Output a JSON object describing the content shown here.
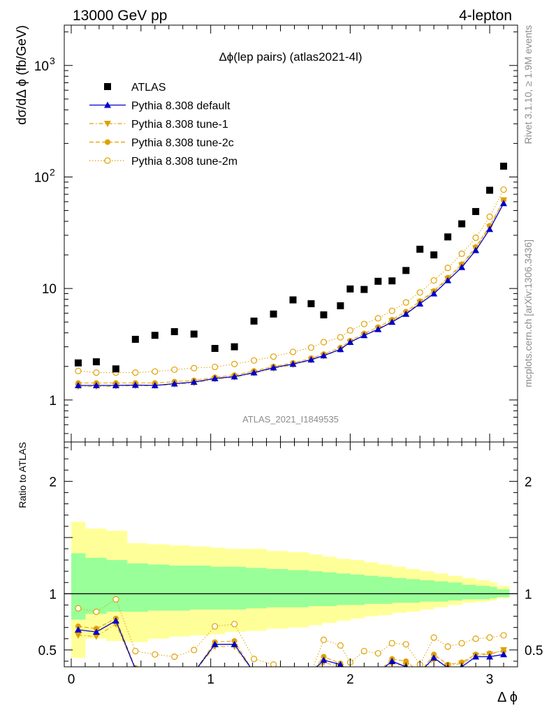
{
  "header": {
    "left": "13000 GeV pp",
    "right": "4-lepton"
  },
  "plot_title": "Δϕ(lep pairs) (atlas2021-4l)",
  "watermark": "ATLAS_2021_I1849535",
  "side_text": {
    "rivet": "Rivet 3.1.10, ≥ 1.9M events",
    "mcplots": "mcplots.cern.ch [arXiv:1306.3436]"
  },
  "chart_data": [
    {
      "type": "scatter",
      "title": "Δϕ(lep pairs) (atlas2021-4l)",
      "ylabel": "dσ/dΔ ϕ (fb/GeV)",
      "xlabel": "",
      "yscale": "log",
      "xlim": [
        -0.05,
        3.2
      ],
      "ylim": [
        0.42,
        2300
      ],
      "ytick_labels": [
        {
          "value": 1,
          "label": "1"
        },
        {
          "value": 10,
          "label": "10"
        },
        {
          "value": 100,
          "label": "10",
          "sup": "2"
        },
        {
          "value": 1000,
          "label": "10",
          "sup": "3"
        }
      ],
      "x": [
        0.05,
        0.18,
        0.32,
        0.46,
        0.6,
        0.74,
        0.88,
        1.03,
        1.17,
        1.31,
        1.45,
        1.59,
        1.72,
        1.81,
        1.93,
        2.0,
        2.1,
        2.2,
        2.3,
        2.4,
        2.5,
        2.6,
        2.7,
        2.8,
        2.9,
        3.0,
        3.1
      ],
      "series": [
        {
          "name": "ATLAS",
          "color": "#000000",
          "marker": "square",
          "values": [
            2.15,
            2.2,
            1.9,
            3.5,
            3.8,
            4.1,
            3.9,
            2.9,
            3.0,
            5.1,
            5.9,
            7.9,
            7.3,
            5.8,
            7.0,
            9.9,
            9.8,
            11.6,
            11.7,
            14.5,
            22.5,
            20.0,
            29.0,
            38.0,
            49.0,
            76.0,
            125.0
          ]
        },
        {
          "name": "Pythia 8.308 default",
          "color": "#0000cc",
          "marker": "triangle-up",
          "line": "solid",
          "values": [
            1.35,
            1.35,
            1.35,
            1.36,
            1.35,
            1.4,
            1.45,
            1.56,
            1.62,
            1.76,
            1.95,
            2.1,
            2.3,
            2.5,
            2.85,
            3.3,
            3.8,
            4.3,
            5.0,
            5.9,
            7.3,
            9.0,
            11.8,
            15.5,
            22.0,
            34.0,
            58.0
          ]
        },
        {
          "name": "Pythia 8.308 tune-1",
          "color": "#e0a000",
          "marker": "triangle-down",
          "line": "dashdot",
          "values": [
            1.32,
            1.32,
            1.33,
            1.34,
            1.34,
            1.38,
            1.42,
            1.54,
            1.6,
            1.74,
            1.92,
            2.07,
            2.28,
            2.48,
            2.83,
            3.3,
            3.8,
            4.35,
            5.1,
            6.0,
            7.5,
            9.3,
            12.2,
            16.2,
            23.0,
            35.5,
            62.0
          ]
        },
        {
          "name": "Pythia 8.308 tune-2c",
          "color": "#e0a000",
          "marker": "circle",
          "line": "dashed",
          "values": [
            1.42,
            1.42,
            1.42,
            1.42,
            1.42,
            1.46,
            1.5,
            1.6,
            1.67,
            1.82,
            2.0,
            2.15,
            2.37,
            2.58,
            2.95,
            3.4,
            3.95,
            4.5,
            5.25,
            6.2,
            7.7,
            9.5,
            12.5,
            16.5,
            23.5,
            36.5,
            62.0
          ]
        },
        {
          "name": "Pythia 8.308 tune-2m",
          "color": "#e0a000",
          "marker": "circle-open",
          "line": "dotted",
          "values": [
            1.82,
            1.76,
            1.76,
            1.76,
            1.8,
            1.87,
            1.93,
            1.98,
            2.1,
            2.26,
            2.45,
            2.7,
            2.95,
            3.3,
            3.65,
            4.2,
            4.8,
            5.4,
            6.3,
            7.5,
            9.2,
            11.8,
            15.3,
            20.5,
            28.5,
            44.0,
            77.0
          ]
        }
      ],
      "legend_position": "top-left",
      "grid": false
    },
    {
      "type": "scatter",
      "ylabel": "Ratio to ATLAS",
      "xlabel": "Δ ϕ",
      "xlim": [
        -0.05,
        3.2
      ],
      "ylim": [
        0.35,
        2.35
      ],
      "xtick_labels": [
        "0",
        "1",
        "2",
        "3"
      ],
      "ytick_labels": [
        "0.5",
        "1",
        "2"
      ],
      "reference_line": 1,
      "x": [
        0.05,
        0.18,
        0.32,
        0.46,
        0.6,
        0.74,
        0.88,
        1.03,
        1.17,
        1.31,
        1.45,
        1.59,
        1.72,
        1.81,
        1.93,
        2.0,
        2.1,
        2.2,
        2.3,
        2.4,
        2.5,
        2.6,
        2.7,
        2.8,
        2.9,
        3.0,
        3.1
      ],
      "x_edges": [
        0.0,
        0.1,
        0.25,
        0.4,
        0.55,
        0.7,
        0.85,
        1.0,
        1.1,
        1.25,
        1.4,
        1.55,
        1.7,
        1.8,
        1.9,
        2.0,
        2.1,
        2.2,
        2.3,
        2.4,
        2.5,
        2.6,
        2.7,
        2.8,
        2.9,
        3.0,
        3.05,
        3.14
      ],
      "bands": [
        {
          "name": "total uncertainty",
          "color": "#ffff99",
          "low": [
            0.43,
            0.6,
            0.58,
            0.57,
            0.6,
            0.62,
            0.63,
            0.64,
            0.66,
            0.67,
            0.69,
            0.7,
            0.72,
            0.74,
            0.76,
            0.78,
            0.8,
            0.81,
            0.83,
            0.84,
            0.86,
            0.88,
            0.9,
            0.92,
            0.93,
            0.94,
            0.96
          ],
          "high": [
            1.64,
            1.58,
            1.56,
            1.45,
            1.44,
            1.43,
            1.42,
            1.41,
            1.4,
            1.4,
            1.38,
            1.37,
            1.35,
            1.33,
            1.31,
            1.3,
            1.28,
            1.26,
            1.24,
            1.22,
            1.2,
            1.18,
            1.16,
            1.14,
            1.12,
            1.1,
            1.07
          ]
        },
        {
          "name": "stat uncertainty",
          "color": "#99ff99",
          "low": [
            0.77,
            0.82,
            0.84,
            0.84,
            0.85,
            0.85,
            0.86,
            0.86,
            0.86,
            0.87,
            0.88,
            0.88,
            0.89,
            0.89,
            0.9,
            0.9,
            0.91,
            0.91,
            0.92,
            0.92,
            0.93,
            0.93,
            0.94,
            0.95,
            0.95,
            0.96,
            0.97
          ],
          "high": [
            1.36,
            1.32,
            1.3,
            1.27,
            1.26,
            1.25,
            1.25,
            1.24,
            1.24,
            1.23,
            1.22,
            1.21,
            1.2,
            1.19,
            1.18,
            1.17,
            1.16,
            1.15,
            1.14,
            1.13,
            1.12,
            1.11,
            1.1,
            1.08,
            1.07,
            1.06,
            1.04
          ]
        }
      ],
      "series": [
        {
          "name": "Pythia 8.308 default",
          "color": "#0000cc",
          "marker": "triangle-up",
          "line": "solid",
          "values": [
            0.68,
            0.66,
            0.76,
            0.33,
            0.3,
            0.3,
            0.3,
            0.55,
            0.55,
            0.3,
            0.3,
            0.3,
            0.3,
            0.41,
            0.37,
            0.3,
            0.3,
            0.3,
            0.4,
            0.35,
            0.3,
            0.43,
            0.34,
            0.35,
            0.44,
            0.44,
            0.46
          ]
        },
        {
          "name": "Pythia 8.308 tune-1",
          "color": "#e0a000",
          "marker": "triangle-down",
          "line": "dashdot",
          "values": [
            0.63,
            0.62,
            0.73,
            0.33,
            0.3,
            0.3,
            0.3,
            0.53,
            0.53,
            0.3,
            0.3,
            0.3,
            0.3,
            0.39,
            0.35,
            0.3,
            0.3,
            0.3,
            0.38,
            0.36,
            0.3,
            0.41,
            0.36,
            0.38,
            0.45,
            0.46,
            0.5
          ]
        },
        {
          "name": "Pythia 8.308 tune-2c",
          "color": "#e0a000",
          "marker": "circle",
          "line": "dashed",
          "values": [
            0.71,
            0.69,
            0.78,
            0.34,
            0.3,
            0.3,
            0.3,
            0.57,
            0.58,
            0.3,
            0.3,
            0.3,
            0.3,
            0.44,
            0.38,
            0.3,
            0.3,
            0.3,
            0.42,
            0.4,
            0.3,
            0.46,
            0.37,
            0.39,
            0.46,
            0.47,
            0.49
          ]
        },
        {
          "name": "Pythia 8.308 tune-2m",
          "color": "#e0a000",
          "marker": "circle-open",
          "line": "dotted",
          "values": [
            0.87,
            0.84,
            0.95,
            0.49,
            0.46,
            0.44,
            0.5,
            0.71,
            0.73,
            0.42,
            0.37,
            0.3,
            0.3,
            0.59,
            0.54,
            0.39,
            0.49,
            0.47,
            0.56,
            0.55,
            0.37,
            0.61,
            0.53,
            0.56,
            0.6,
            0.61,
            0.63
          ]
        }
      ],
      "grid": false
    }
  ]
}
